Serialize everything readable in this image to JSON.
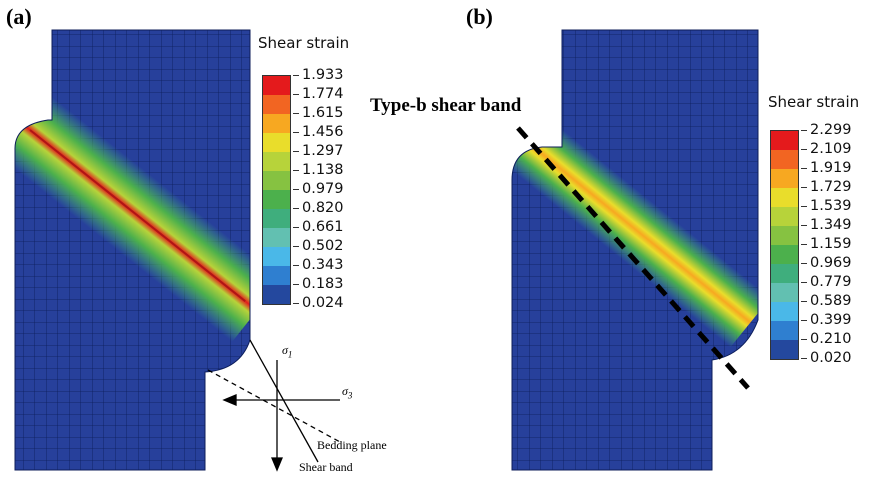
{
  "panels": [
    {
      "label": "(a)",
      "colorbar": {
        "title": "Shear strain",
        "ticks": [
          "1.933",
          "1.774",
          "1.615",
          "1.456",
          "1.297",
          "1.138",
          "0.979",
          "0.820",
          "0.661",
          "0.502",
          "0.343",
          "0.183",
          "0.024"
        ]
      },
      "stress_diagram": {
        "sigma1": "σ1",
        "sigma3": "σ3",
        "bedding_plane": "Bedding plane",
        "shear_band": "Shear band"
      }
    },
    {
      "label": "(b)",
      "annotation": "Type-b shear band",
      "colorbar": {
        "title": "Shear strain",
        "ticks": [
          "2.299",
          "2.109",
          "1.919",
          "1.729",
          "1.539",
          "1.349",
          "1.159",
          "0.969",
          "0.779",
          "0.589",
          "0.399",
          "0.210",
          "0.020"
        ]
      }
    }
  ],
  "colors": {
    "colormap": [
      "#e41a1c",
      "#f26522",
      "#f7a821",
      "#e9dd2b",
      "#b7d33a",
      "#86c241",
      "#4cb04c",
      "#3fae7d",
      "#62c0b1",
      "#4ab8e8",
      "#2f7fd0",
      "#24489e"
    ],
    "mesh_fill": "#27409b"
  }
}
